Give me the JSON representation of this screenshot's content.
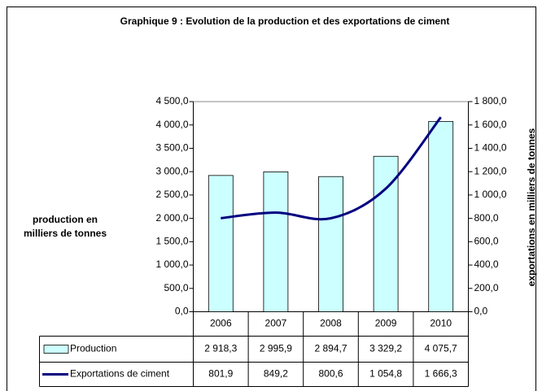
{
  "chart_data": {
    "type": "bar-line",
    "title": "Graphique 9 : Evolution de la production et des exportations de ciment",
    "y_label": [
      "production en",
      "milliers de tonnes"
    ],
    "y2_label": "exportations en milliers de tonnes",
    "categories": [
      "2006",
      "2007",
      "2008",
      "2009",
      "2010"
    ],
    "series": [
      {
        "name": "Production",
        "type": "bar",
        "color": "#ccffff",
        "values": [
          2918.3,
          2995.9,
          2894.7,
          3329.2,
          4075.7
        ],
        "value_labels": [
          "2 918,3",
          "2 995,9",
          "2 894,7",
          "3 329,2",
          "4 075,7"
        ]
      },
      {
        "name": "Exportations de ciment",
        "type": "line",
        "axis": "y2",
        "color": "#000080",
        "values": [
          801.9,
          849.2,
          800.6,
          1054.8,
          1666.3
        ],
        "value_labels": [
          "801,9",
          "849,2",
          "800,6",
          "1 054,8",
          "1 666,3"
        ]
      }
    ],
    "ylim": [
      0,
      4500
    ],
    "yticks": [
      {
        "value": 0,
        "label": "0,0"
      },
      {
        "value": 500,
        "label": "500,0"
      },
      {
        "value": 1000,
        "label": "1 000,0"
      },
      {
        "value": 1500,
        "label": "1 500,0"
      },
      {
        "value": 2000,
        "label": "2 000,0"
      },
      {
        "value": 2500,
        "label": "2 500,0"
      },
      {
        "value": 3000,
        "label": "3 000,0"
      },
      {
        "value": 3500,
        "label": "3 500,0"
      },
      {
        "value": 4000,
        "label": "4 000,0"
      },
      {
        "value": 4500,
        "label": "4 500,0"
      }
    ],
    "y2lim": [
      0,
      1800
    ],
    "y2ticks": [
      {
        "value": 0,
        "label": "0,0"
      },
      {
        "value": 200,
        "label": "200,0"
      },
      {
        "value": 400,
        "label": "400,0"
      },
      {
        "value": 600,
        "label": "600,0"
      },
      {
        "value": 800,
        "label": "800,0"
      },
      {
        "value": 1000,
        "label": "1 000,0"
      },
      {
        "value": 1200,
        "label": "1 200,0"
      },
      {
        "value": 1400,
        "label": "1 400,0"
      },
      {
        "value": 1600,
        "label": "1 600,0"
      },
      {
        "value": 1800,
        "label": "1 800,0"
      }
    ],
    "grid": false
  }
}
